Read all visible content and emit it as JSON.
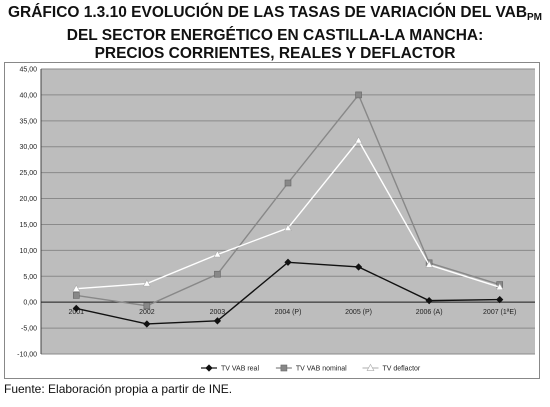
{
  "title": {
    "line1": "GRÁFICO 1.3.10 EVOLUCIÓN DE LAS TASAS DE VARIACIÓN DEL VAB",
    "line1_sub": "PM",
    "line2": "DEL SECTOR ENERGÉTICO EN CASTILLA-LA MANCHA:",
    "line3": "PRECIOS CORRIENTES, REALES  Y DEFLACTOR"
  },
  "source": "Fuente: Elaboración propia a partir de INE.",
  "chart_data": {
    "type": "line",
    "categories": [
      "2001",
      "2002",
      "2003",
      "2004 (P)",
      "2005 (P)",
      "2006 (A)",
      "2007 (1ªE)"
    ],
    "ylim": [
      -10,
      45
    ],
    "yticks": [
      "-10,00",
      "-5,00",
      "0,00",
      "5,00",
      "10,00",
      "15,00",
      "20,00",
      "25,00",
      "30,00",
      "35,00",
      "40,00",
      "45,00"
    ],
    "ytick_values": [
      -10,
      -5,
      0,
      5,
      10,
      15,
      20,
      25,
      30,
      35,
      40,
      45
    ],
    "grid": true,
    "legend_position": "bottom",
    "series": [
      {
        "name": "TV VAB real",
        "color": "#111111",
        "marker": "diamond",
        "values": [
          -1.2,
          -4.2,
          -3.6,
          7.7,
          6.8,
          0.3,
          0.5
        ]
      },
      {
        "name": "TV VAB nominal",
        "color": "#888888",
        "marker": "square",
        "values": [
          1.3,
          -0.7,
          5.4,
          23.0,
          40.0,
          7.6,
          3.4
        ]
      },
      {
        "name": "TV deflactor",
        "color": "#ffffff",
        "marker": "triangle",
        "values": [
          2.6,
          3.6,
          9.2,
          14.3,
          31.2,
          7.2,
          2.9
        ]
      }
    ]
  }
}
